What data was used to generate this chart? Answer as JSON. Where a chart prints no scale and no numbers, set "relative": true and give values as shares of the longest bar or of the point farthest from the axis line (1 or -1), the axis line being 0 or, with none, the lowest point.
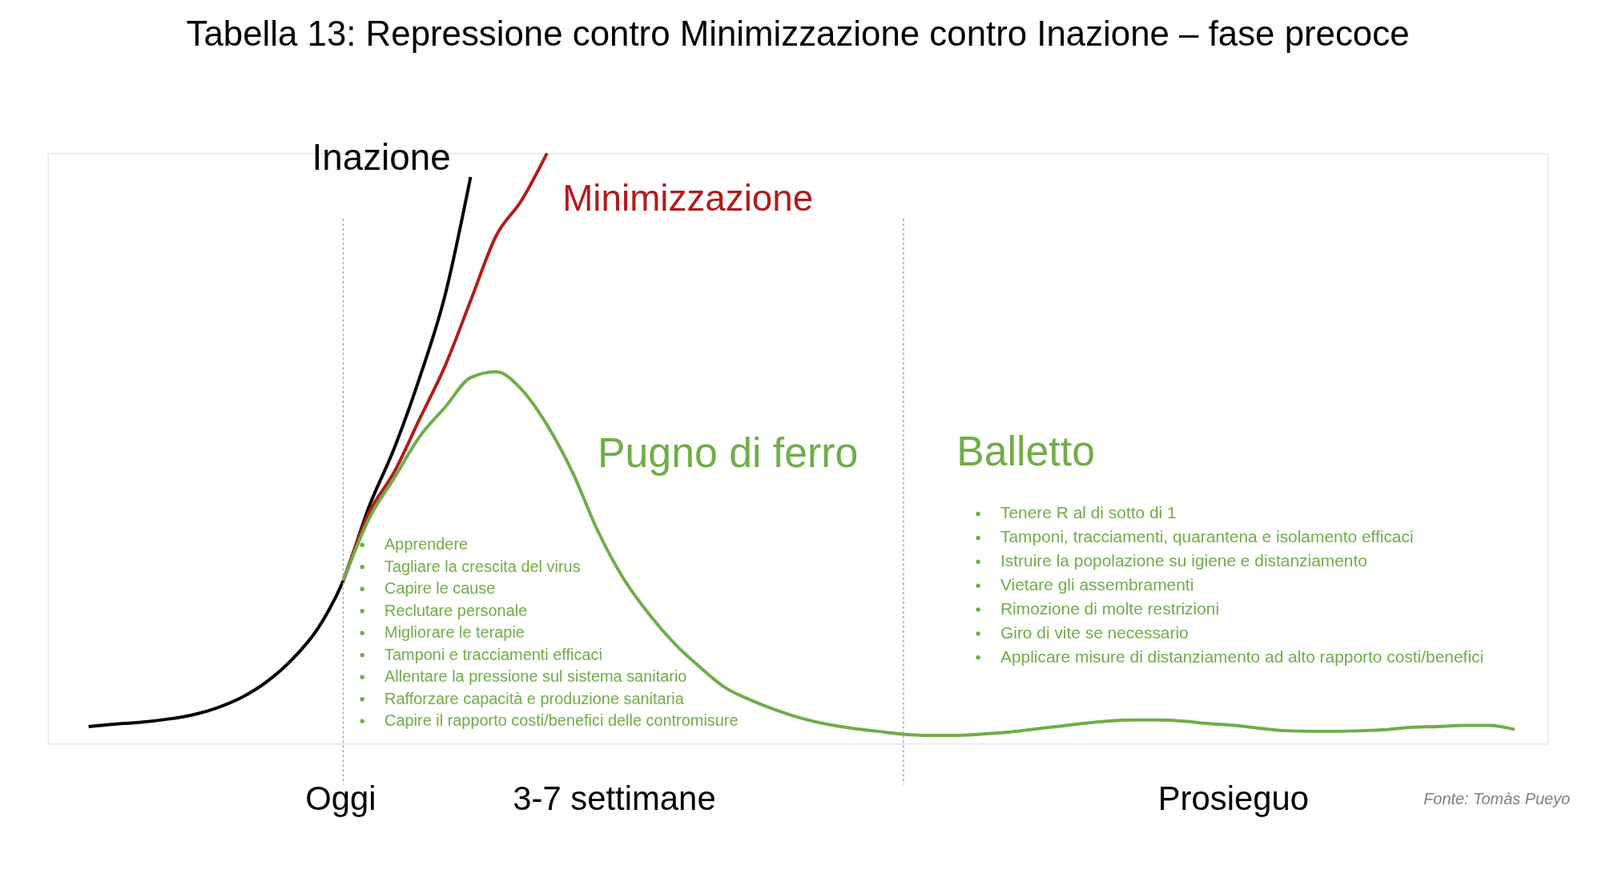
{
  "chart_data": {
    "type": "line",
    "relative": true,
    "legend": false,
    "grid": false,
    "tick_labels": false,
    "title": "Tabella 13: Repressione contro Minimizzazione contro Inazione – fase precoce",
    "categories": [
      null,
      null,
      null,
      null,
      null,
      null,
      null,
      null,
      null,
      null,
      null,
      null,
      null,
      null,
      null,
      null,
      null,
      null,
      null,
      null,
      null,
      null,
      null,
      null,
      null,
      null,
      null,
      null,
      null,
      null,
      null,
      null,
      null,
      null,
      null,
      null,
      null,
      null,
      null,
      null,
      null,
      null,
      null,
      null,
      null,
      null,
      null,
      null,
      null,
      null,
      null,
      null,
      null,
      null,
      null,
      null,
      null
    ],
    "series": [
      {
        "name": "Inazione",
        "color": "#000000",
        "values": [
          0.029,
          0.033,
          0.036,
          0.041,
          0.048,
          0.06,
          0.078,
          0.105,
          0.143,
          0.195,
          0.276,
          0.4,
          0.5,
          0.62,
          0.76,
          0.96,
          null,
          null,
          null,
          null,
          null,
          null,
          null,
          null,
          null,
          null,
          null,
          null,
          null,
          null,
          null,
          null,
          null,
          null,
          null,
          null,
          null,
          null,
          null,
          null,
          null,
          null,
          null,
          null,
          null,
          null,
          null,
          null,
          null,
          null,
          null,
          null,
          null,
          null,
          null,
          null,
          null
        ]
      },
      {
        "name": "Minimizzazione",
        "color": "#b01c1c",
        "values": [
          null,
          null,
          null,
          null,
          null,
          null,
          null,
          null,
          null,
          null,
          0.276,
          0.39,
          0.46,
          0.55,
          0.64,
          0.75,
          0.86,
          0.92,
          1.0,
          null,
          null,
          null,
          null,
          null,
          null,
          null,
          null,
          null,
          null,
          null,
          null,
          null,
          null,
          null,
          null,
          null,
          null,
          null,
          null,
          null,
          null,
          null,
          null,
          null,
          null,
          null,
          null,
          null,
          null,
          null,
          null,
          null,
          null,
          null,
          null,
          null,
          null
        ]
      },
      {
        "name": "Pugno di ferro",
        "color": "#70ad47",
        "values": [
          null,
          null,
          null,
          null,
          null,
          null,
          null,
          null,
          null,
          null,
          0.276,
          0.38,
          0.45,
          0.52,
          0.57,
          0.62,
          0.63,
          0.6,
          0.54,
          0.46,
          0.36,
          0.28,
          0.22,
          0.17,
          0.13,
          0.095,
          0.074,
          0.057,
          0.043,
          0.033,
          0.026,
          0.021,
          0.016,
          0.014,
          0.014,
          0.016,
          0.019,
          0.024,
          0.029,
          0.034,
          0.038,
          0.04,
          0.04,
          0.038,
          0.034,
          0.031,
          0.026,
          0.022,
          0.021,
          0.021,
          0.022,
          0.024,
          0.028,
          0.029,
          0.031,
          0.031,
          0.024
        ]
      }
    ],
    "annotations": [
      "Balletto",
      "Apprendere",
      "Tagliare la crescita del virus",
      "Capire le cause",
      "Reclutare personale",
      "Migliorare le terapie",
      "Tamponi e tracciamenti efficaci",
      "Allentare la pressione sul sistema sanitario",
      "Rafforzare capacità e produzione sanitaria",
      "Capire il rapporto costi/benefici delle contromisure",
      "Tenere R al di sotto di 1",
      "Tamponi, tracciamenti, quarantena e isolamento efficaci",
      "Istruire la popolazione su igiene e distanziamento",
      "Vietare gli assembramenti",
      "Rimozione di molte restrizioni",
      "Giro di vite se necessario",
      "Applicare misure di distanziamento ad alto rapporto costi/benefici",
      "Oggi",
      "3-7 settimane",
      "Prosieguo",
      "Fonte: Tomàs Pueyo"
    ]
  }
}
